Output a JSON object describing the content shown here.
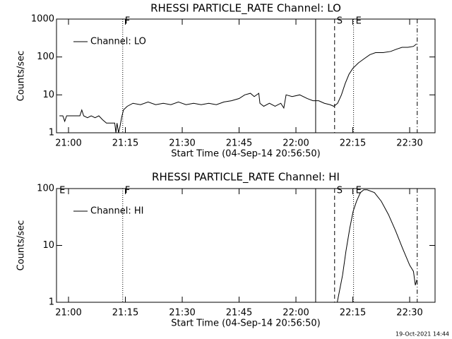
{
  "chart_data": [
    {
      "type": "line",
      "title": "RHESSI PARTICLE_RATE Channel: LO",
      "xlabel": "Start Time (04-Sep-14 20:56:50)",
      "ylabel": "Counts/sec",
      "x": [
        1257.6,
        1258.5,
        1259.0,
        1259.5,
        1260.5,
        1261.5,
        1263.0,
        1263.5,
        1264.0,
        1265.0,
        1266.0,
        1267.0,
        1268.0,
        1269.0,
        1270.0,
        1271.5,
        1272.2,
        1272.5,
        1272.8,
        1273.2,
        1273.6,
        1274.0,
        1274.5,
        1275.5,
        1277,
        1279,
        1281,
        1283,
        1285,
        1287,
        1289,
        1291,
        1293,
        1295,
        1297,
        1299,
        1301,
        1303,
        1305,
        1306.5,
        1308,
        1309,
        1310.2,
        1310.5,
        1311.5,
        1313,
        1314.5,
        1316,
        1316.8,
        1317.4,
        1319,
        1321,
        1323,
        1324.5,
        1326,
        1327.5,
        1329,
        1330,
        1331,
        1332,
        1333,
        1334,
        1335,
        1336.5,
        1338,
        1339.5,
        1341,
        1343,
        1345,
        1346.5,
        1348,
        1349.5,
        1351,
        1351.8
      ],
      "series": [
        {
          "name": "Channel: LO",
          "color": "#000000",
          "values": [
            2.8,
            2.8,
            2.0,
            2.8,
            2.8,
            2.8,
            2.8,
            4,
            2.8,
            2.5,
            2.8,
            2.5,
            2.8,
            2.2,
            1.8,
            1.8,
            1.8,
            1.0,
            1.8,
            1.0,
            1.5,
            2.5,
            4,
            5,
            6,
            5.5,
            6.5,
            5.5,
            6,
            5.5,
            6.5,
            5.5,
            6,
            5.5,
            6,
            5.5,
            6.5,
            7,
            8,
            10,
            11,
            9,
            11,
            6,
            5,
            6,
            5,
            6,
            4.5,
            10,
            9,
            10,
            8,
            7,
            7,
            6,
            5.5,
            5,
            6,
            10,
            20,
            35,
            50,
            70,
            90,
            115,
            130,
            130,
            140,
            160,
            180,
            180,
            190,
            220
          ]
        }
      ],
      "xlim": [
        1256.83,
        1356.7
      ],
      "xticks": [
        {
          "value": 1260,
          "label": "21:00"
        },
        {
          "value": 1275,
          "label": "21:15"
        },
        {
          "value": 1290,
          "label": "21:30"
        },
        {
          "value": 1305,
          "label": "21:45"
        },
        {
          "value": 1320,
          "label": "22:00"
        },
        {
          "value": 1335,
          "label": "22:15"
        },
        {
          "value": 1350,
          "label": "22:30"
        }
      ],
      "ylim": [
        1,
        1000
      ],
      "yticks": [
        1,
        10,
        100,
        1000
      ],
      "log_y": true,
      "markers": [
        {
          "x": 1274.3,
          "style": "dotted",
          "label": "F"
        },
        {
          "x": 1325.2,
          "style": "solid"
        },
        {
          "x": 1330.2,
          "style": "dashed",
          "label": "S"
        },
        {
          "x": 1335.2,
          "style": "dotted",
          "label": "E"
        },
        {
          "x": 1352.0,
          "style": "dashdot"
        }
      ]
    },
    {
      "type": "line",
      "title": "RHESSI PARTICLE_RATE Channel: HI",
      "xlabel": "Start Time (04-Sep-14 20:56:50)",
      "ylabel": "Counts/sec",
      "x": [
        1330.9,
        1332.3,
        1333.2,
        1334.2,
        1335.1,
        1336.0,
        1337.0,
        1337.9,
        1338.8,
        1340.7,
        1342.5,
        1344.4,
        1346.3,
        1348.1,
        1350.0,
        1351.0,
        1351.5,
        1351.9
      ],
      "series": [
        {
          "name": "Channel: HI",
          "color": "#000000",
          "values": [
            1.0,
            3,
            8,
            20,
            40,
            60,
            85,
            95,
            95,
            85,
            60,
            35,
            18,
            9,
            4.5,
            3.5,
            2,
            2.5
          ]
        }
      ],
      "xlim": [
        1256.83,
        1356.7
      ],
      "xticks": [
        {
          "value": 1260,
          "label": "21:00"
        },
        {
          "value": 1275,
          "label": "21:15"
        },
        {
          "value": 1290,
          "label": "21:30"
        },
        {
          "value": 1305,
          "label": "21:45"
        },
        {
          "value": 1320,
          "label": "22:00"
        },
        {
          "value": 1335,
          "label": "22:15"
        },
        {
          "value": 1350,
          "label": "22:30"
        }
      ],
      "ylim": [
        1,
        100
      ],
      "yticks": [
        1,
        10,
        100
      ],
      "log_y": true,
      "markers": [
        {
          "x": 1274.3,
          "style": "dotted",
          "label": "F"
        },
        {
          "x": 1325.2,
          "style": "solid"
        },
        {
          "x": 1330.2,
          "style": "dashed",
          "label": "S"
        },
        {
          "x": 1335.2,
          "style": "dotted",
          "label": "E"
        },
        {
          "x": 1352.0,
          "style": "dashdot"
        }
      ],
      "annotations": [
        {
          "text": "E",
          "x": 1257.6
        }
      ]
    }
  ],
  "timestamp": "19-Oct-2021 14:44"
}
